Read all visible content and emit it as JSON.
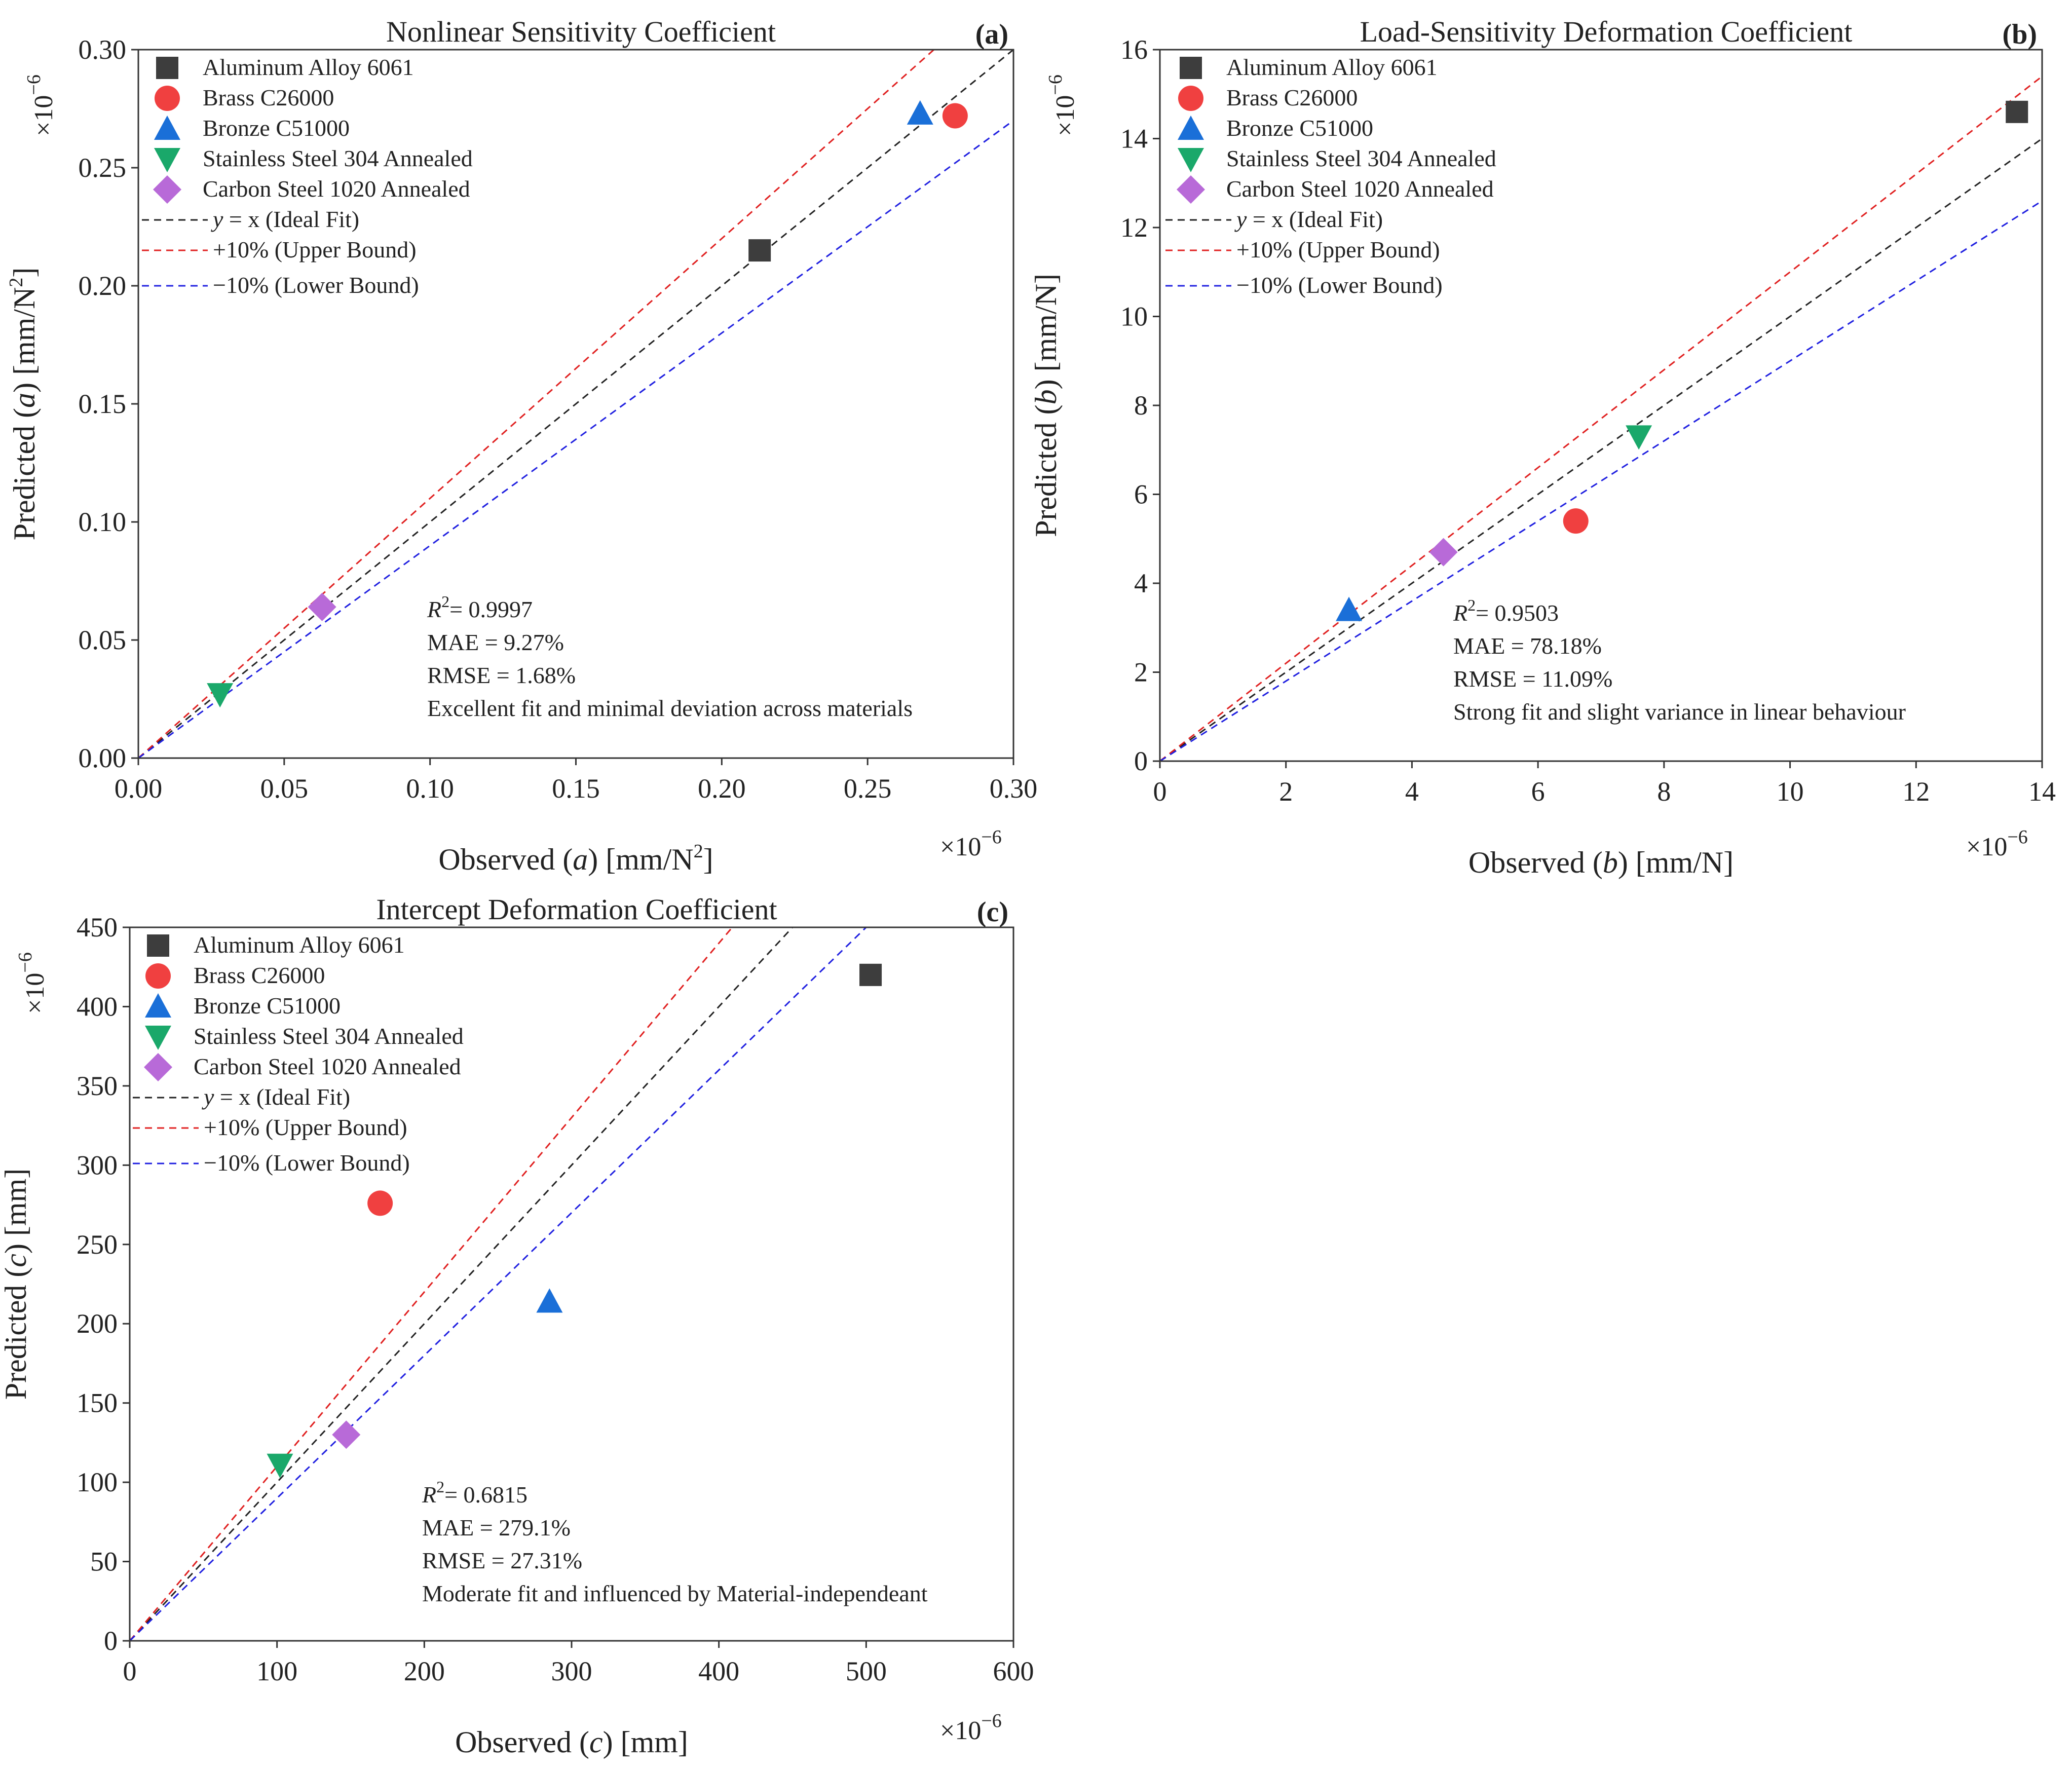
{
  "chart_data": [
    {
      "type": "scatter",
      "panel": "(a)",
      "title": "Nonlinear Sensitivity Coefficient",
      "xlabel": {
        "pre": "Observed (",
        "var": "a",
        "post": ") [mm/N",
        "sup": "2",
        "end": "]"
      },
      "ylabel": {
        "pre": "Predicted (",
        "var": "a",
        "post": ") [mm/N",
        "sup": "2",
        "end": "]"
      },
      "x_multiplier": "×10",
      "x_multiplier_exp": "−6",
      "y_multiplier": "×10",
      "y_multiplier_exp": "−6",
      "xlim": [
        0,
        0.3
      ],
      "ylim": [
        0,
        0.3
      ],
      "xticks": [
        "0.00",
        "0.05",
        "0.10",
        "0.15",
        "0.20",
        "0.25",
        "0.30"
      ],
      "yticks": [
        "0.00",
        "0.05",
        "0.10",
        "0.15",
        "0.20",
        "0.25",
        "0.30"
      ],
      "points": [
        {
          "material": "Aluminum Alloy 6061",
          "x": 0.213,
          "y": 0.215
        },
        {
          "material": "Brass C26000",
          "x": 0.28,
          "y": 0.272
        },
        {
          "material": "Bronze C51000",
          "x": 0.268,
          "y": 0.273
        },
        {
          "material": "Stainless Steel 304 Annealed",
          "x": 0.028,
          "y": 0.027
        },
        {
          "material": "Carbon Steel 1020 Annealed",
          "x": 0.063,
          "y": 0.064
        }
      ],
      "stats": {
        "r2_label": "R",
        "r2_sup": "2",
        "r2_value": "= 0.9997",
        "mae": "MAE = 9.27%",
        "rmse": "RMSE = 1.68%",
        "note": "Excellent fit and minimal deviation across materials"
      }
    },
    {
      "type": "scatter",
      "panel": "(b)",
      "title": "Load-Sensitivity Deformation Coefficient",
      "xlabel": {
        "pre": "Observed (",
        "var": "b",
        "post": ") [mm/N]",
        "sup": "",
        "end": ""
      },
      "ylabel": {
        "pre": "Predicted (",
        "var": "b",
        "post": ") [mm/N]",
        "sup": "",
        "end": ""
      },
      "x_multiplier": "×10",
      "x_multiplier_exp": "−6",
      "y_multiplier": "×10",
      "y_multiplier_exp": "−6",
      "xlim": [
        0,
        14
      ],
      "ylim": [
        0,
        16
      ],
      "xticks": [
        "0",
        "2",
        "4",
        "6",
        "8",
        "10",
        "12",
        "14"
      ],
      "yticks": [
        "0",
        "2",
        "4",
        "6",
        "8",
        "10",
        "12",
        "14",
        "16"
      ],
      "points": [
        {
          "material": "Aluminum Alloy 6061",
          "x": 13.6,
          "y": 14.6
        },
        {
          "material": "Brass C26000",
          "x": 6.6,
          "y": 5.4
        },
        {
          "material": "Bronze C51000",
          "x": 3.0,
          "y": 3.4
        },
        {
          "material": "Stainless Steel 304 Annealed",
          "x": 7.6,
          "y": 7.3
        },
        {
          "material": "Carbon Steel 1020 Annealed",
          "x": 4.5,
          "y": 4.7
        }
      ],
      "stats": {
        "r2_label": "R",
        "r2_sup": "2",
        "r2_value": "= 0.9503",
        "mae": "MAE = 78.18%",
        "rmse": "RMSE = 11.09%",
        "note": "Strong fit and slight variance in linear behaviour"
      }
    },
    {
      "type": "scatter",
      "panel": "(c)",
      "title": "Intercept Deformation Coefficient",
      "xlabel": {
        "pre": "Observed (",
        "var": "c",
        "post": ") [mm]",
        "sup": "",
        "end": ""
      },
      "ylabel": {
        "pre": "Predicted (",
        "var": "c",
        "post": ") [mm]",
        "sup": "",
        "end": ""
      },
      "x_multiplier": "×10",
      "x_multiplier_exp": "−6",
      "y_multiplier": "×10",
      "y_multiplier_exp": "−6",
      "xlim": [
        0,
        600
      ],
      "ylim": [
        0,
        450
      ],
      "xticks": [
        "0",
        "100",
        "200",
        "300",
        "400",
        "500",
        "600"
      ],
      "yticks": [
        "0",
        "50",
        "100",
        "150",
        "200",
        "250",
        "300",
        "350",
        "400",
        "450"
      ],
      "points": [
        {
          "material": "Aluminum Alloy 6061",
          "x": 503,
          "y": 420
        },
        {
          "material": "Brass C26000",
          "x": 170,
          "y": 276
        },
        {
          "material": "Bronze C51000",
          "x": 285,
          "y": 214
        },
        {
          "material": "Stainless Steel 304 Annealed",
          "x": 102,
          "y": 111
        },
        {
          "material": "Carbon Steel 1020 Annealed",
          "x": 147,
          "y": 130
        }
      ],
      "stats": {
        "r2_label": "R",
        "r2_sup": "2",
        "r2_value": "= 0.6815",
        "mae": "MAE = 279.1%",
        "rmse": "RMSE = 27.31%",
        "note": "Moderate fit and influenced by Material-independeant"
      }
    }
  ],
  "legend": {
    "markers": [
      {
        "label": "Aluminum Alloy 6061",
        "shape": "square",
        "color": "#3d3d3d"
      },
      {
        "label": "Brass C26000",
        "shape": "circle",
        "color": "#f04040"
      },
      {
        "label": "Bronze C51000",
        "shape": "triangle-up",
        "color": "#1a6fd8"
      },
      {
        "label": "Stainless Steel 304 Annealed",
        "shape": "triangle-down",
        "color": "#1aa86a"
      },
      {
        "label": "Carbon Steel 1020 Annealed",
        "shape": "diamond",
        "color": "#b86ad8"
      }
    ],
    "lines": [
      {
        "key": "ideal",
        "label_var": "y",
        "label_rest": "= x (Ideal Fit)",
        "factor": 1.0,
        "color": "#222222"
      },
      {
        "key": "upper",
        "label_var": "",
        "label_rest": "+10% (Upper Bound)",
        "factor": 1.1,
        "color": "#e02020"
      },
      {
        "key": "lower",
        "label_var": "",
        "label_rest": "−10% (Lower Bound)",
        "factor": 0.9,
        "color": "#2020e0"
      }
    ]
  }
}
